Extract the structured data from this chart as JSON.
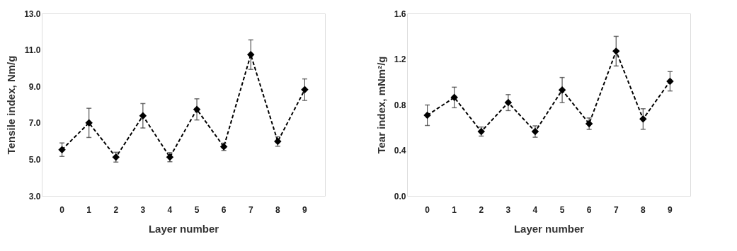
{
  "chart_data": [
    {
      "type": "line",
      "categories": [
        "0",
        "1",
        "2",
        "3",
        "4",
        "5",
        "6",
        "7",
        "8",
        "9"
      ],
      "xlabel": "Layer number",
      "ylabel": "Tensile index, Nm/g",
      "series": [
        {
          "color": "#000000",
          "values": [
            5.53,
            7.0,
            5.12,
            7.39,
            5.12,
            7.74,
            5.69,
            10.74,
            5.98,
            8.82
          ],
          "errors": [
            0.37,
            0.8,
            0.27,
            0.67,
            0.25,
            0.58,
            0.2,
            0.81,
            0.26,
            0.59
          ]
        }
      ],
      "ylim": [
        3,
        13
      ],
      "yticks": [
        {
          "value": 3,
          "label": "3.0"
        },
        {
          "value": 5,
          "label": "5.0"
        },
        {
          "value": 7,
          "label": "7.0"
        },
        {
          "value": 9,
          "label": "9.0"
        },
        {
          "value": 11,
          "label": "11.0"
        },
        {
          "value": 13,
          "label": "13.0"
        }
      ],
      "grid": false,
      "marker": "diamond",
      "line_style": "dashed"
    },
    {
      "type": "line",
      "categories": [
        "0",
        "1",
        "2",
        "3",
        "4",
        "5",
        "6",
        "7",
        "8",
        "9"
      ],
      "xlabel": "Layer number",
      "ylabel": "Tear index, mNm²/g",
      "series": [
        {
          "color": "#000000",
          "values": [
            0.707,
            0.863,
            0.564,
            0.818,
            0.564,
            0.928,
            0.633,
            1.269,
            0.674,
            1.005
          ],
          "errors": [
            0.09,
            0.09,
            0.04,
            0.07,
            0.05,
            0.11,
            0.05,
            0.13,
            0.09,
            0.085
          ]
        }
      ],
      "ylim": [
        0,
        1.6
      ],
      "yticks": [
        {
          "value": 0,
          "label": "0.0"
        },
        {
          "value": 0.4,
          "label": "0.4"
        },
        {
          "value": 0.8,
          "label": "0.8"
        },
        {
          "value": 1.2,
          "label": "1.2"
        },
        {
          "value": 1.6,
          "label": "1.6"
        }
      ],
      "grid": false,
      "marker": "diamond",
      "line_style": "dashed"
    }
  ]
}
